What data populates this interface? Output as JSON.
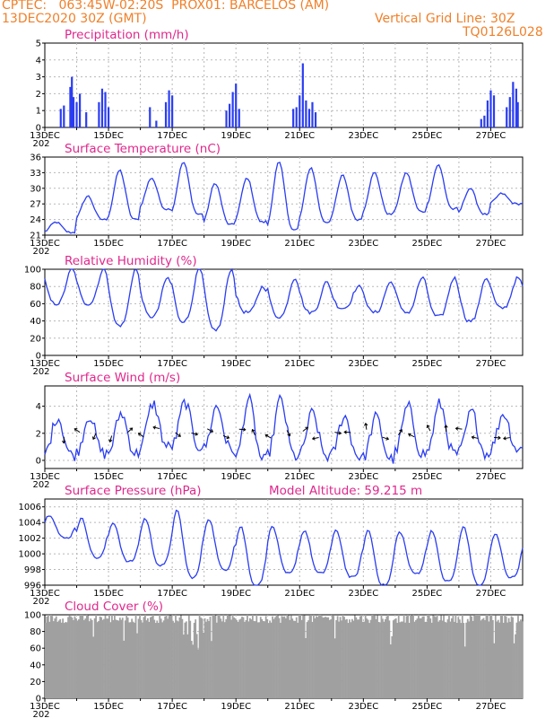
{
  "header": {
    "line1_left": "CPTEC:   063:45W-02:20S  PROX01: BARCELOS (AM)",
    "line2_left": "13DEC2020 30Z (GMT)",
    "line2_right": "Vertical Grid Line: 30Z",
    "line3_right": "TQ0126L028"
  },
  "colors": {
    "header": "#f0802a",
    "title": "#e0288c",
    "series": "#2a3df2",
    "cloud": "#a0a0a0",
    "grid": "#b8b8b8"
  },
  "x_axis": {
    "start_day": 13,
    "end_day": 28,
    "tick_labels": [
      "13DEC",
      "15DEC",
      "17DEC",
      "19DEC",
      "21DEC",
      "23DEC",
      "25DEC",
      "27DEC"
    ],
    "tick_days": [
      13,
      15,
      17,
      19,
      21,
      23,
      25,
      27
    ],
    "sublabel": "202"
  },
  "chart_data": [
    {
      "id": "precip",
      "type": "bar",
      "title": "Precipitation (mm/h)",
      "ylim": [
        0,
        5
      ],
      "yticks": [
        0,
        1,
        2,
        3,
        4,
        5
      ],
      "yticklabels": [
        "0",
        "1",
        "2",
        "3",
        "4",
        "5"
      ],
      "approx_bars": [
        {
          "day": 13.5,
          "value": 1.1
        },
        {
          "day": 13.6,
          "value": 1.3
        },
        {
          "day": 13.8,
          "value": 2.4
        },
        {
          "day": 13.85,
          "value": 3.0
        },
        {
          "day": 13.9,
          "value": 1.8
        },
        {
          "day": 14.0,
          "value": 1.5
        },
        {
          "day": 14.1,
          "value": 2.0
        },
        {
          "day": 14.3,
          "value": 0.9
        },
        {
          "day": 14.7,
          "value": 1.5
        },
        {
          "day": 14.8,
          "value": 2.3
        },
        {
          "day": 14.9,
          "value": 2.1
        },
        {
          "day": 15.0,
          "value": 1.2
        },
        {
          "day": 16.3,
          "value": 1.2
        },
        {
          "day": 16.5,
          "value": 0.4
        },
        {
          "day": 16.8,
          "value": 1.5
        },
        {
          "day": 16.9,
          "value": 2.2
        },
        {
          "day": 17.0,
          "value": 1.9
        },
        {
          "day": 18.7,
          "value": 1.0
        },
        {
          "day": 18.8,
          "value": 1.4
        },
        {
          "day": 18.9,
          "value": 2.1
        },
        {
          "day": 19.0,
          "value": 2.6
        },
        {
          "day": 19.1,
          "value": 1.1
        },
        {
          "day": 20.8,
          "value": 1.1
        },
        {
          "day": 20.9,
          "value": 1.2
        },
        {
          "day": 21.0,
          "value": 1.9
        },
        {
          "day": 21.1,
          "value": 3.8
        },
        {
          "day": 21.2,
          "value": 1.6
        },
        {
          "day": 21.3,
          "value": 1.1
        },
        {
          "day": 21.4,
          "value": 1.5
        },
        {
          "day": 21.5,
          "value": 0.9
        },
        {
          "day": 26.7,
          "value": 0.5
        },
        {
          "day": 26.8,
          "value": 0.7
        },
        {
          "day": 26.9,
          "value": 1.6
        },
        {
          "day": 27.0,
          "value": 2.2
        },
        {
          "day": 27.1,
          "value": 1.9
        },
        {
          "day": 27.5,
          "value": 1.2
        },
        {
          "day": 27.6,
          "value": 1.8
        },
        {
          "day": 27.7,
          "value": 2.7
        },
        {
          "day": 27.8,
          "value": 2.3
        },
        {
          "day": 27.85,
          "value": 1.5
        }
      ]
    },
    {
      "id": "temp",
      "type": "line",
      "title": "Surface Temperature (nC)",
      "ylim": [
        21,
        36
      ],
      "yticks": [
        21,
        24,
        27,
        30,
        33,
        36
      ],
      "yticklabels": [
        "21",
        "24",
        "27",
        "30",
        "33",
        "36"
      ],
      "approx_daily_max": [
        23.5,
        28.5,
        33.5,
        32.0,
        35.0,
        31.0,
        32.0,
        35.0,
        34.0,
        32.5,
        33.0,
        33.0,
        34.5,
        30.0,
        29.0
      ],
      "approx_daily_min": [
        21.5,
        24.0,
        24.0,
        26.0,
        25.0,
        23.0,
        23.5,
        22.0,
        23.5,
        24.0,
        25.0,
        25.5,
        26.0,
        25.0,
        27.0
      ]
    },
    {
      "id": "rh",
      "type": "line",
      "title": "Relative Humidity (%)",
      "ylim": [
        0,
        100
      ],
      "yticks": [
        0,
        20,
        40,
        60,
        80,
        100
      ],
      "yticklabels": [
        "0",
        "20",
        "40",
        "60",
        "80",
        "100"
      ],
      "approx_daily_max": [
        100,
        100,
        100,
        90,
        100,
        100,
        80,
        90,
        85,
        80,
        85,
        90,
        90,
        90,
        90
      ],
      "approx_daily_min": [
        60,
        60,
        35,
        45,
        40,
        30,
        50,
        45,
        50,
        55,
        50,
        50,
        45,
        40,
        55
      ]
    },
    {
      "id": "wind",
      "type": "line",
      "title": "Surface Wind (m/s)",
      "ylim": [
        -0.6,
        5.5
      ],
      "yticks": [
        0,
        2,
        4
      ],
      "yticklabels": [
        "0",
        "2",
        "4"
      ],
      "approx_daily_max": [
        3.2,
        3.3,
        3.5,
        4.2,
        4.3,
        4.0,
        4.5,
        4.5,
        3.5,
        3.3,
        3.2,
        4.0,
        4.2,
        3.6,
        3.5
      ],
      "approx_daily_min": [
        0.4,
        0.5,
        0.5,
        1.0,
        1.0,
        0.8,
        0.0,
        0.3,
        0.3,
        0.3,
        0.1,
        0.5,
        0.5,
        0.5,
        0.8
      ]
    },
    {
      "id": "press",
      "type": "line",
      "title": "Surface Pressure (hPa)",
      "subtitle": "Model Altitude: 59.215 m",
      "ylim": [
        996,
        1007
      ],
      "yticks": [
        996,
        998,
        1000,
        1002,
        1004,
        1006
      ],
      "yticklabels": [
        "996",
        "998",
        "1000",
        "1002",
        "1004",
        "1006"
      ],
      "approx_daily_max": [
        1005.0,
        1004.5,
        1004.0,
        1004.5,
        1005.5,
        1004.5,
        1003.5,
        1003.5,
        1003.0,
        1003.0,
        1003.0,
        1002.8,
        1003.0,
        1003.5,
        1002.5
      ],
      "approx_daily_min": [
        1002.0,
        999.5,
        999.0,
        998.5,
        997.0,
        998.0,
        996.0,
        997.5,
        997.5,
        997.0,
        996.0,
        997.5,
        996.5,
        996.0,
        997.0
      ]
    },
    {
      "id": "cloud",
      "type": "area",
      "title": "Cloud Cover (%)",
      "ylim": [
        0,
        100
      ],
      "yticks": [
        0,
        20,
        40,
        60,
        80,
        100
      ],
      "yticklabels": [
        "0",
        "20",
        "40",
        "60",
        "80",
        "100"
      ],
      "approx_typical_value": 95
    }
  ]
}
